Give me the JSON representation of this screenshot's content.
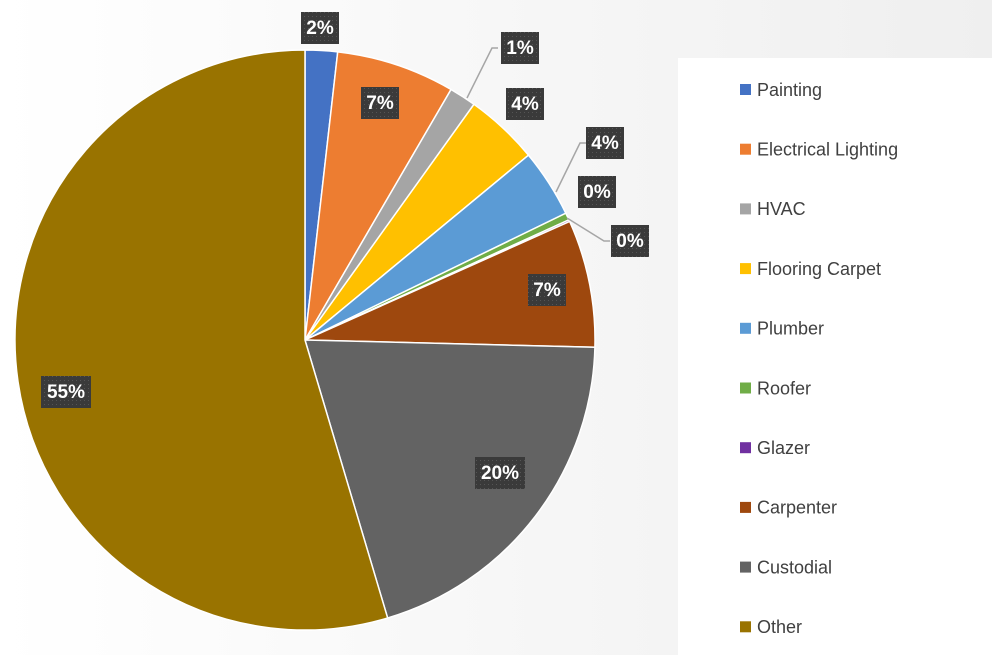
{
  "chart_data": {
    "type": "pie",
    "categories": [
      "Painting",
      "Electrical Lighting",
      "HVAC",
      "Flooring Carpet",
      "Plumber",
      "Roofer",
      "Glazer",
      "Carpenter",
      "Custodial",
      "Other"
    ],
    "values": [
      1.8,
      6.6,
      1.5,
      4.1,
      3.8,
      0.4,
      0.1,
      7.1,
      20.0,
      54.6
    ],
    "value_labels": [
      "2%",
      "7%",
      "1%",
      "4%",
      "4%",
      "0%",
      "0%",
      "7%",
      "20%",
      "55%"
    ],
    "colors": [
      "#4472c4",
      "#ed7d31",
      "#a5a5a5",
      "#ffc000",
      "#5b9bd5",
      "#70ad47",
      "#7030a0",
      "#9e480e",
      "#636363",
      "#997300"
    ],
    "legend": "right"
  }
}
